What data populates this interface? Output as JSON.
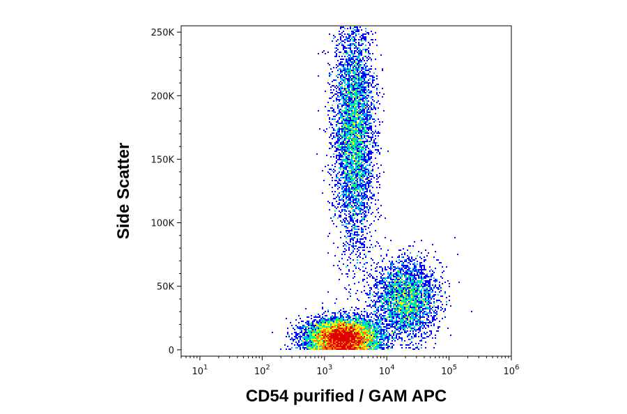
{
  "chart_data": {
    "type": "scatter",
    "title": "",
    "xlabel": "CD54 purified / GAM APC",
    "ylabel": "Side Scatter",
    "x_scale": "log",
    "xlim": [
      5,
      1000000
    ],
    "ylim": [
      -5000,
      255000
    ],
    "x_ticks": [
      {
        "base": "10",
        "exp": "1",
        "value": 10
      },
      {
        "base": "10",
        "exp": "2",
        "value": 100
      },
      {
        "base": "10",
        "exp": "3",
        "value": 1000
      },
      {
        "base": "10",
        "exp": "4",
        "value": 10000
      },
      {
        "base": "10",
        "exp": "5",
        "value": 100000
      },
      {
        "base": "10",
        "exp": "6",
        "value": 1000000
      }
    ],
    "y_ticks": [
      {
        "label": "0",
        "value": 0
      },
      {
        "label": "50K",
        "value": 50000
      },
      {
        "label": "100K",
        "value": 100000
      },
      {
        "label": "150K",
        "value": 150000
      },
      {
        "label": "200K",
        "value": 200000
      },
      {
        "label": "250K",
        "value": 250000
      }
    ],
    "color_scale": [
      "#0000ff",
      "#00b4ff",
      "#00ff80",
      "#ffff00",
      "#ff8000",
      "#e00000"
    ],
    "populations": [
      {
        "x_center": 2000,
        "y_center": 10000,
        "spread_log_x": 0.28,
        "spread_y": 7000,
        "relative_density": 1.0
      },
      {
        "x_center": 3000,
        "y_center": 170000,
        "spread_log_x": 0.16,
        "spread_y": 45000,
        "relative_density": 0.55
      },
      {
        "x_center": 20000,
        "y_center": 40000,
        "spread_log_x": 0.25,
        "spread_y": 15000,
        "relative_density": 0.35
      }
    ],
    "grid": false
  }
}
